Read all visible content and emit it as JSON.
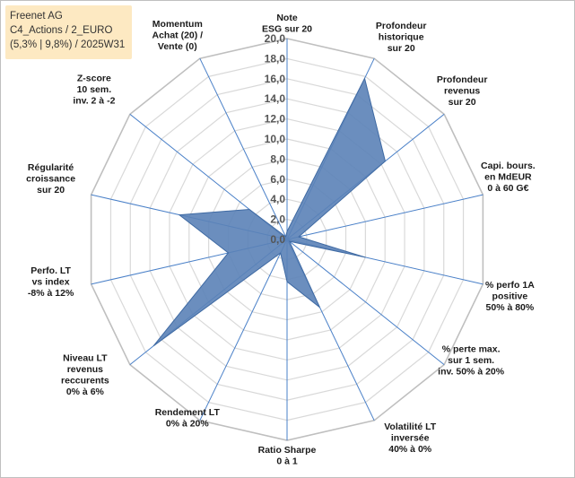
{
  "infobox": {
    "line1": "Freenet AG",
    "line2": "C4_Actions / 2_EURO",
    "line3": "(5,3% | 9,8%) / 2025W31"
  },
  "chart_data": {
    "type": "radar",
    "title": "",
    "rlim": [
      0,
      20
    ],
    "rticks": [
      "0,0",
      "2,0",
      "4,0",
      "6,0",
      "8,0",
      "10,0",
      "12,0",
      "14,0",
      "16,0",
      "18,0",
      "20,0"
    ],
    "axes": [
      [
        "Note",
        "ESG sur 20"
      ],
      [
        "Profondeur",
        "historique",
        "sur 20"
      ],
      [
        "Profondeur",
        "revenus",
        "sur 20"
      ],
      [
        "Capi. bours.",
        "en MdEUR",
        "0 à 60 G€"
      ],
      [
        "% perfo 1A",
        "positive",
        "50% à 80%"
      ],
      [
        "% perte max.",
        "sur 1 sem.",
        "inv. 50% à 20%"
      ],
      [
        "Volatilité LT",
        "inversée",
        "40% à 0%"
      ],
      [
        "Ratio Sharpe",
        "0 à 1"
      ],
      [
        "Rendement LT",
        "0% à 20%"
      ],
      [
        "Niveau LT",
        "revenus",
        "reccurents",
        "0% à 6%"
      ],
      [
        "Perfo. LT",
        "vs index",
        "-8% à 12%"
      ],
      [
        "Régularité",
        "croissance",
        "sur 20"
      ],
      [
        "Z-score",
        "10 sem.",
        "inv. 2 à -2"
      ],
      [
        "Momentum",
        "Achat (20) /",
        "Vente (0)"
      ]
    ],
    "series": [
      {
        "values": [
          0.8,
          17.8,
          12.5,
          1.2,
          8.0,
          0.3,
          7.5,
          4.2,
          1.5,
          17.0,
          6.0,
          11.0,
          4.8,
          0.3
        ]
      }
    ],
    "colors": {
      "fill": "#5b82b7",
      "stroke": "#3f6aa3",
      "spoke": "#4a80c8",
      "grid": "#d9d9d9"
    },
    "grid": true
  }
}
